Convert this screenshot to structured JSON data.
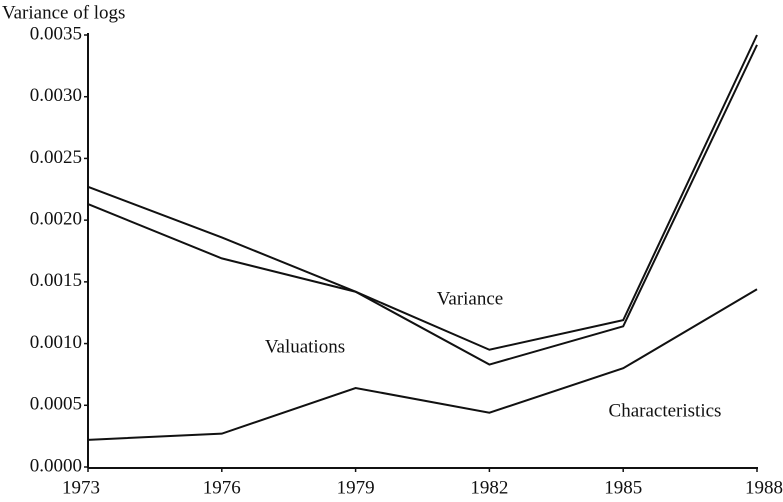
{
  "chart_data": {
    "type": "line",
    "y_label": "Variance of logs",
    "x": [
      1973,
      1976,
      1979,
      1982,
      1985,
      1988
    ],
    "xlim": [
      1973,
      1988
    ],
    "xticks": [
      1973,
      1976,
      1979,
      1982,
      1985,
      1988
    ],
    "ylim": [
      0,
      0.0035
    ],
    "yticks": [
      {
        "value": 0,
        "label": "0.0000"
      },
      {
        "value": 0.0005,
        "label": "0.0005"
      },
      {
        "value": 0.001,
        "label": "0.0010"
      },
      {
        "value": 0.0015,
        "label": "0.0015"
      },
      {
        "value": 0.002,
        "label": "0.0020"
      },
      {
        "value": 0.0025,
        "label": "0.0025"
      },
      {
        "value": 0.003,
        "label": "0.0030"
      },
      {
        "value": 0.0035,
        "label": "0.0035"
      }
    ],
    "grid": false,
    "series": [
      {
        "name": "Variance",
        "color": "#111111",
        "values": [
          0.00227,
          0.00186,
          0.00142,
          0.00095,
          0.00119,
          0.0035
        ]
      },
      {
        "name": "Valuations",
        "color": "#111111",
        "values": [
          0.00213,
          0.00169,
          0.00142,
          0.00083,
          0.00114,
          0.00342
        ]
      },
      {
        "name": "Characteristics",
        "color": "#111111",
        "values": [
          0.00022,
          0.00027,
          0.00064,
          0.00044,
          0.0008,
          0.00144
        ]
      }
    ]
  }
}
